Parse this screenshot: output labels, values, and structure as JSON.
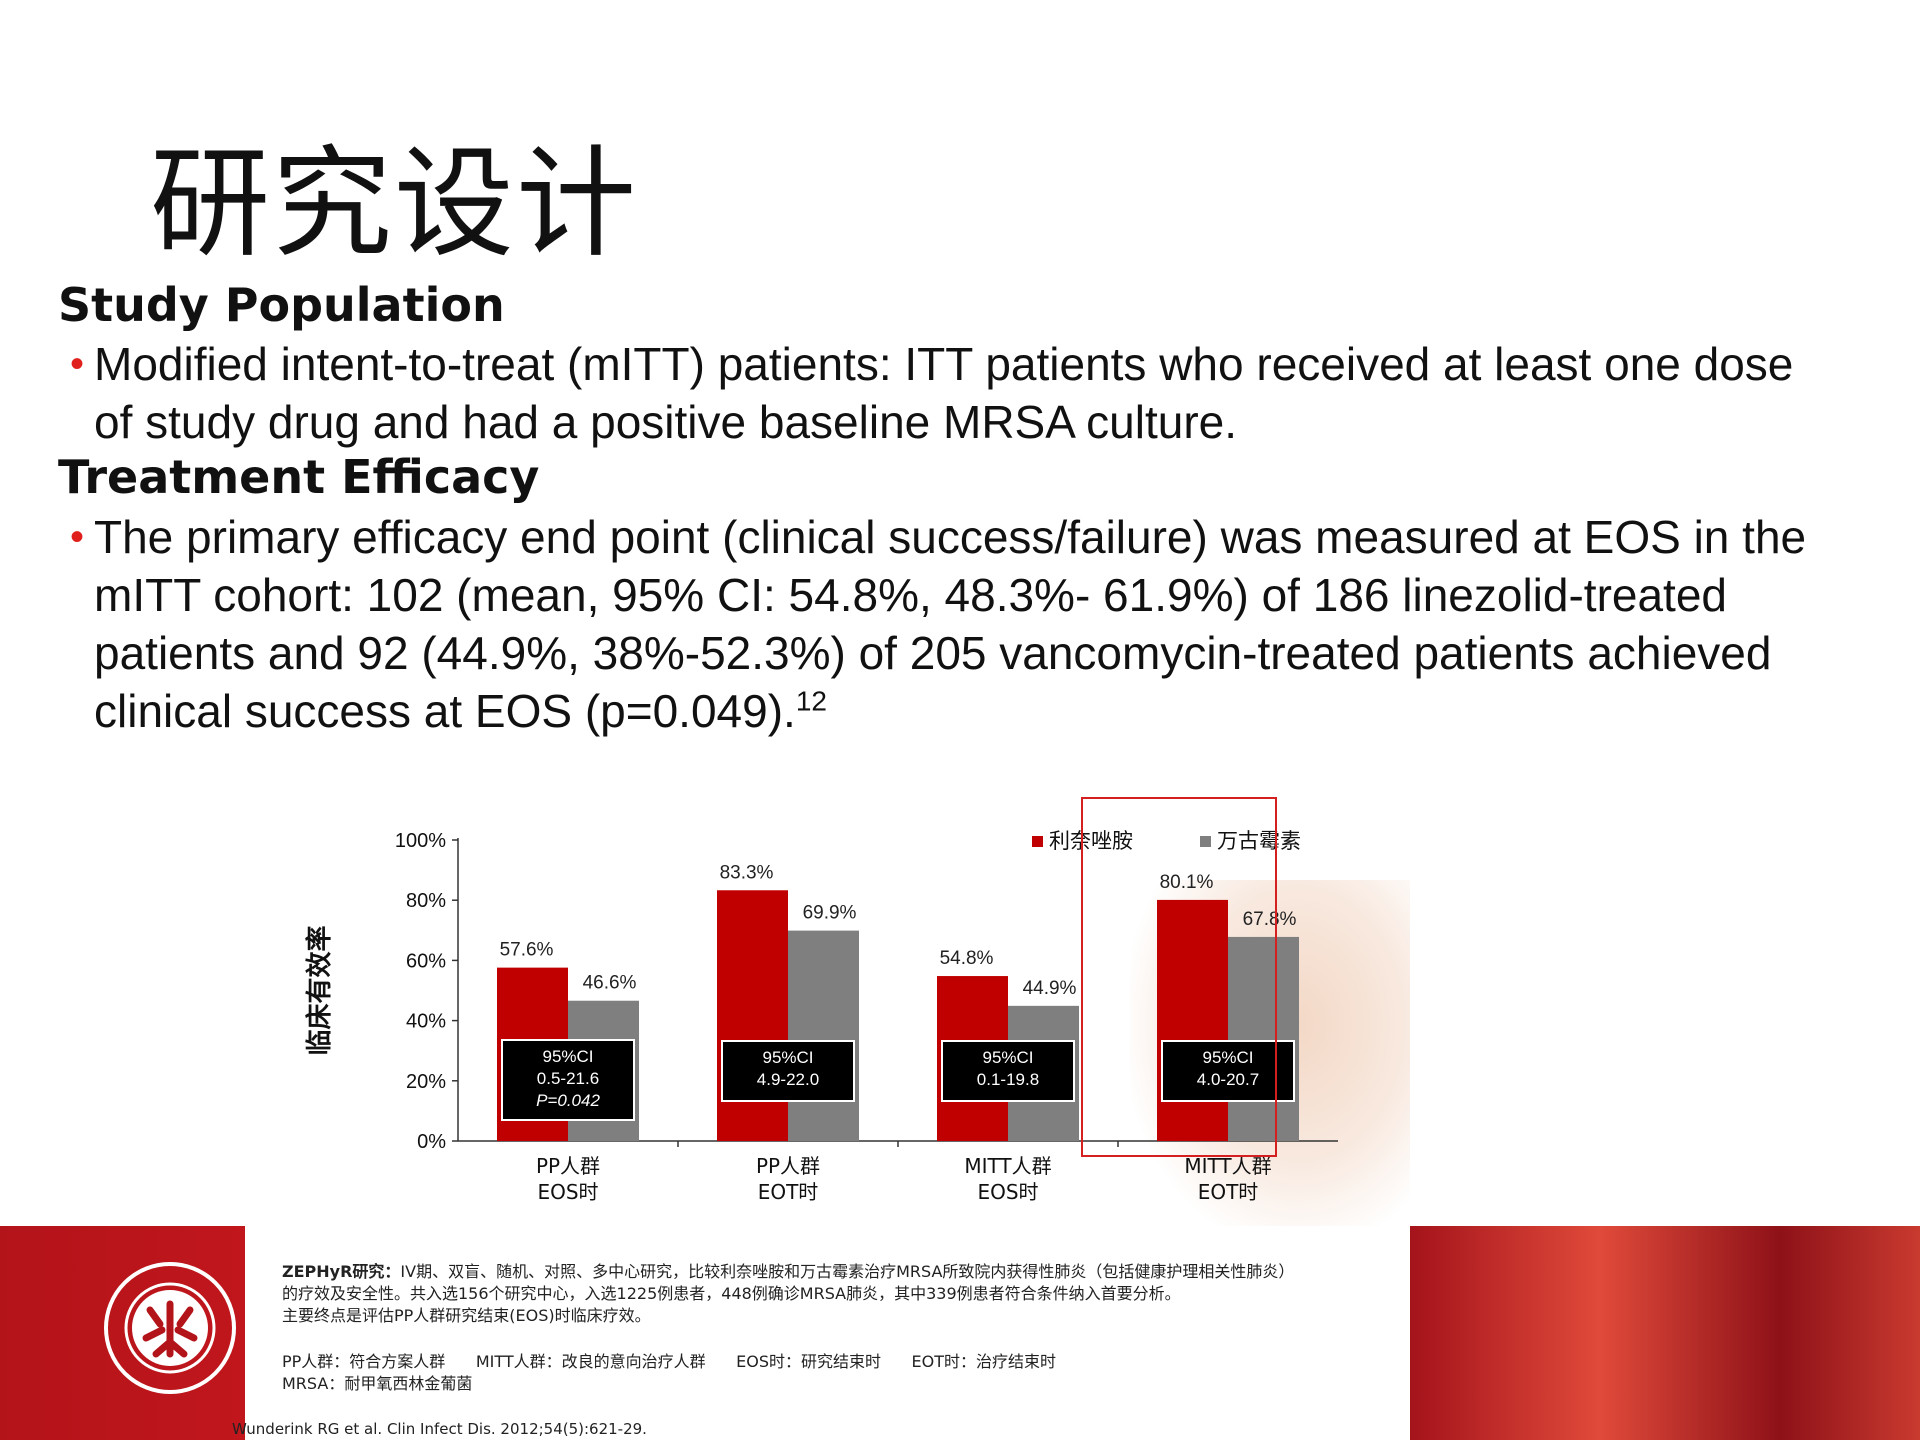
{
  "title": "研究设计",
  "sections": [
    {
      "heading": "Study Population",
      "bullet": "Modified intent-to-treat (mITT) patients: ITT patients who received at least one dose of study drug and had a positive baseline MRSA culture."
    },
    {
      "heading": "Treatment Efficacy",
      "bullet": "The primary efficacy end point (clinical success/failure) was measured at EOS in the mITT cohort:  102 (mean, 95% CI: 54.8%, 48.3%- 61.9%) of 186 linezolid-treated patients and 92 (44.9%, 38%-52.3%) of 205 vancomycin-treated patients achieved clinical success at EOS (p=0.049).",
      "superscript": "12"
    }
  ],
  "chart_data": {
    "type": "bar",
    "ylabel": "临床有效率",
    "ylim": [
      0,
      100
    ],
    "yticks": [
      "0%",
      "20%",
      "40%",
      "60%",
      "80%",
      "100%"
    ],
    "categories": [
      [
        "PP人群",
        "EOS时"
      ],
      [
        "PP人群",
        "EOT时"
      ],
      [
        "MITT人群",
        "EOS时"
      ],
      [
        "MITT人群",
        "EOT时"
      ]
    ],
    "series": [
      {
        "name": "利奈唑胺",
        "color": "#c00000",
        "values": [
          57.6,
          83.3,
          54.8,
          80.1
        ],
        "labels": [
          "57.6%",
          "83.3%",
          "54.8%",
          "80.1%"
        ]
      },
      {
        "name": "万古霉素",
        "color": "#7f7f7f",
        "values": [
          46.6,
          69.9,
          44.9,
          67.8
        ],
        "labels": [
          "46.6%",
          "69.9%",
          "44.9%",
          "67.8%"
        ]
      }
    ],
    "ci_boxes": [
      [
        "95%CI",
        "0.5-21.6",
        "P=0.042"
      ],
      [
        "95%CI",
        "4.9-22.0"
      ],
      [
        "95%CI",
        "0.1-19.8"
      ],
      [
        "95%CI",
        "4.0-20.7"
      ]
    ],
    "legend": "top-right",
    "highlighted_group": 3
  },
  "footnote": {
    "study_label": "ZEPHyR研究：",
    "study_text": "IV期、双盲、随机、对照、多中心研究，比较利奈唑胺和万古霉素治疗MRSA所致院内获得性肺炎（包括健康护理相关性肺炎）",
    "line2": "的疗效及安全性。共入选156个研究中心，入选1225例患者，448例确诊MRSA肺炎，其中339例患者符合条件纳入首要分析。",
    "line3": "主要终点是评估PP人群研究结束(EOS)时临床疗效。",
    "defs": "PP人群：符合方案人群      MITT人群：改良的意向治疗人群      EOS时：研究结束时      EOT时：治疗结束时",
    "mrsa": "MRSA：耐甲氧西林金葡菌",
    "citation": "Wunderink  RG et al. Clin Infect Dis. 2012;54(5):621-29."
  }
}
